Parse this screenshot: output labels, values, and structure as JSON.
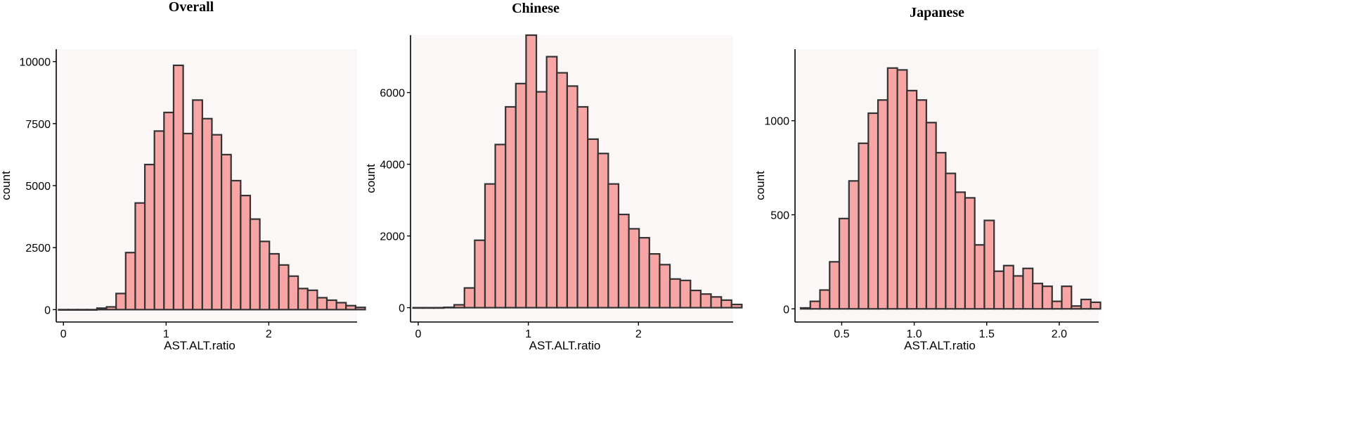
{
  "chart_data": [
    {
      "type": "bar",
      "title": "Overall",
      "xlabel": "AST.ALT.ratio",
      "ylabel": "count",
      "xlim": [
        -0.07,
        2.86
      ],
      "ylim": [
        -500,
        10500
      ],
      "xticks": [
        0,
        1,
        2
      ],
      "xtick_labels": [
        "0",
        "1",
        "2"
      ],
      "yticks": [
        0,
        2500,
        5000,
        7500,
        10000
      ],
      "ytick_labels": [
        "0",
        "2500",
        "5000",
        "7500",
        "10000"
      ],
      "bin_width": 0.0933,
      "bin_start": -0.0467,
      "values": [
        0,
        0,
        0,
        0,
        60,
        110,
        650,
        2300,
        4300,
        5850,
        7200,
        7950,
        9850,
        7100,
        8450,
        7700,
        7050,
        6250,
        5200,
        4600,
        3650,
        2750,
        2250,
        1800,
        1350,
        850,
        780,
        480,
        380,
        280,
        160,
        90
      ],
      "grid": false,
      "background": "#fcf7f7",
      "bar_color": "#f8a5a5"
    },
    {
      "type": "bar",
      "title": "Chinese",
      "xlabel": "AST.ALT.ratio",
      "ylabel": "count",
      "xlim": [
        -0.07,
        2.86
      ],
      "ylim": [
        -400,
        7600
      ],
      "xticks": [
        0,
        1,
        2
      ],
      "xtick_labels": [
        "0",
        "1",
        "2"
      ],
      "yticks": [
        0,
        2000,
        4000,
        6000
      ],
      "ytick_labels": [
        "0",
        "2000",
        "4000",
        "6000"
      ],
      "bin_width": 0.0933,
      "bin_start": -0.0467,
      "values": [
        0,
        0,
        0,
        10,
        80,
        550,
        1880,
        3450,
        4550,
        5600,
        6250,
        7600,
        6020,
        7000,
        6550,
        6180,
        5600,
        4700,
        4300,
        3450,
        2600,
        2200,
        1950,
        1500,
        1200,
        800,
        760,
        480,
        380,
        300,
        210,
        90
      ],
      "grid": false,
      "background": "#fcf7f7",
      "bar_color": "#f8a5a5"
    },
    {
      "type": "bar",
      "title": "Japanese",
      "xlabel": "AST.ALT.ratio",
      "ylabel": "count",
      "xlim": [
        0.178,
        2.272
      ],
      "ylim": [
        -70,
        1380
      ],
      "xticks": [
        0.5,
        1.0,
        1.5,
        2.0
      ],
      "xtick_labels": [
        "0.5",
        "1.0",
        "1.5",
        "2.0"
      ],
      "yticks": [
        0,
        500,
        1000
      ],
      "ytick_labels": [
        "0",
        "500",
        "1000"
      ],
      "bin_width": 0.0667,
      "bin_start": 0.2167,
      "values": [
        5,
        40,
        100,
        250,
        480,
        680,
        880,
        1040,
        1110,
        1280,
        1270,
        1160,
        1110,
        990,
        830,
        720,
        620,
        590,
        340,
        470,
        200,
        230,
        175,
        215,
        135,
        120,
        40,
        120,
        15,
        50,
        35
      ],
      "grid": false,
      "background": "#fcf7f7",
      "bar_color": "#f8a5a5"
    }
  ]
}
